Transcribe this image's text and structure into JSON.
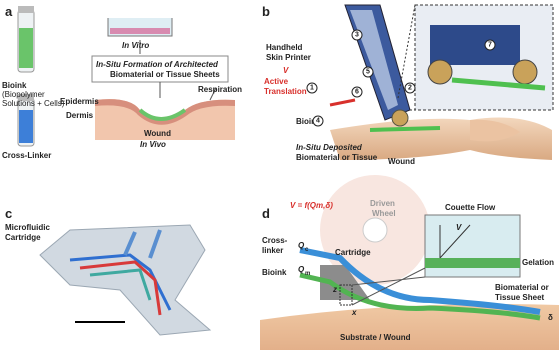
{
  "panels": {
    "a": {
      "label": "a",
      "bioink": [
        "Bioink",
        "(Biopolymer",
        "Solutions + Cells)"
      ],
      "cross_linker": "Cross-Linker",
      "in_vitro": "In Vitro",
      "formation": [
        "In-Situ Formation of Architected",
        "Biomaterial or Tissue Sheets"
      ],
      "epidermis": "Epidermis",
      "dermis": "Dermis",
      "respiration": "Respiration",
      "wound": "Wound",
      "in_vivo": "In Vivo"
    },
    "b": {
      "label": "b",
      "printer": [
        "Handheld",
        "Skin Printer"
      ],
      "v": "V",
      "translation": [
        "Active",
        "Translation"
      ],
      "bioink": "Bioink",
      "deposited": [
        "In-Situ Deposited",
        "Biomaterial or Tissue"
      ],
      "wound": "Wound",
      "callouts": [
        "1",
        "2",
        "3",
        "4",
        "5",
        "6",
        "7"
      ]
    },
    "c": {
      "label": "c",
      "cartridge": [
        "Microfluidic",
        "Cartridge"
      ]
    },
    "d": {
      "label": "d",
      "wheel": [
        "Driven",
        "Wheel"
      ],
      "couette": "Couette Flow",
      "velocity": "V = f(Qm,δ)",
      "v": "V",
      "cross_linker": [
        "Cross-",
        "linker"
      ],
      "q_c": {
        "symbol": "Q",
        "subscript": "c"
      },
      "bioink": "Bioink",
      "q_m": {
        "symbol": "Q",
        "subscript": "m"
      },
      "cartridge": "Cartridge",
      "gelation": "Gelation",
      "sheet": [
        "Biomaterial or",
        "Tissue Sheet"
      ],
      "delta": "δ",
      "z": "z",
      "x": "x",
      "substrate": "Substrate / Wound"
    }
  }
}
